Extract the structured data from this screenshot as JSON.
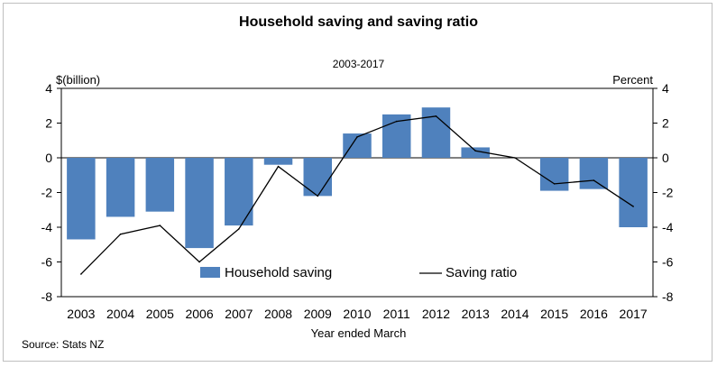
{
  "chart_data": {
    "type": "bar",
    "title": "Household saving and saving ratio",
    "subtitle": "2003-2017",
    "ylabel_left": "$(billion)",
    "ylabel_right": "Percent",
    "xlabel": "Year ended March",
    "source": "Source: Stats NZ",
    "ylim": [
      -8,
      4
    ],
    "yticks": [
      4,
      2,
      0,
      -2,
      -4,
      -6,
      -8
    ],
    "grid": false,
    "legend_position": "bottom-center",
    "categories": [
      "2003",
      "2004",
      "2005",
      "2006",
      "2007",
      "2008",
      "2009",
      "2010",
      "2011",
      "2012",
      "2013",
      "2014",
      "2015",
      "2016",
      "2017"
    ],
    "series": [
      {
        "name": "Household saving",
        "type": "bar",
        "axis": "left",
        "color": "#4f81bd",
        "values": [
          -4.7,
          -3.4,
          -3.1,
          -5.2,
          -3.9,
          -0.4,
          -2.2,
          1.4,
          2.5,
          2.9,
          0.6,
          0.0,
          -1.9,
          -1.8,
          -4.0
        ]
      },
      {
        "name": "Saving ratio",
        "type": "line",
        "axis": "right",
        "color": "#000000",
        "values": [
          -6.7,
          -4.4,
          -3.9,
          -6.0,
          -4.1,
          -0.5,
          -2.2,
          1.2,
          2.1,
          2.4,
          0.4,
          0.0,
          -1.5,
          -1.3,
          -2.8
        ]
      }
    ]
  }
}
